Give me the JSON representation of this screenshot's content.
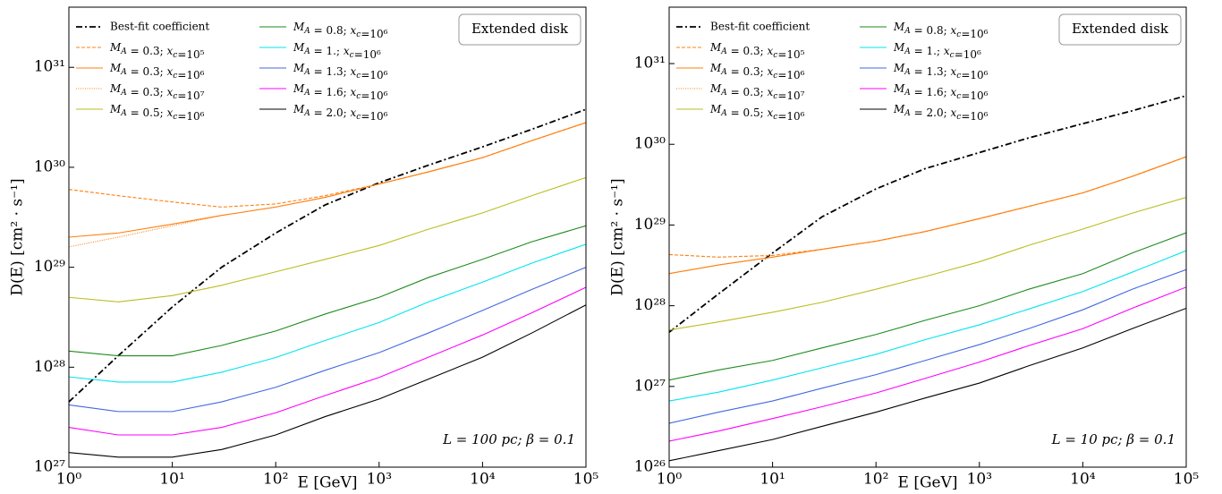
{
  "chart_data": [
    {
      "type": "line",
      "xscale": "log",
      "yscale": "log",
      "xlabel": "E [GeV]",
      "ylabel": "D(E) [cm² · s⁻¹]",
      "box_label": "Extended disk",
      "annotation": "L = 100 pc; β = 0.1",
      "xlim": [
        1,
        100000
      ],
      "ylim": [
        1e+27,
        4e+31
      ],
      "xticks": [
        {
          "value": 1,
          "label": "10⁰"
        },
        {
          "value": 10,
          "label": "10¹"
        },
        {
          "value": 100,
          "label": "10²"
        },
        {
          "value": 1000,
          "label": "10³"
        },
        {
          "value": 10000,
          "label": "10⁴"
        },
        {
          "value": 100000,
          "label": "10⁵"
        }
      ],
      "yticks": [
        {
          "value": 1e+27,
          "label": "10²⁷"
        },
        {
          "value": 1e+28,
          "label": "10²⁸"
        },
        {
          "value": 1e+29,
          "label": "10²⁹"
        },
        {
          "value": 1e+30,
          "label": "10³⁰"
        },
        {
          "value": 1e+31,
          "label": "10³¹"
        }
      ],
      "x": [
        1,
        3,
        10,
        30,
        100,
        300,
        1000,
        3000,
        10000,
        30000,
        100000
      ],
      "series": [
        {
          "name": "Best-fit coefficient",
          "color": "#000000",
          "linestyle": "dashdot",
          "values": [
            4.5e+27,
            1.3e+28,
            4e+28,
            1e+29,
            2.2e+29,
            4.2e+29,
            7e+29,
            1.05e+30,
            1.6e+30,
            2.4e+30,
            3.8e+30
          ]
        },
        {
          "name": "MA = 0.3; xc=10⁵",
          "color": "#ff7f0e",
          "linestyle": "dashed",
          "values": [
            6e+29,
            5.2e+29,
            4.5e+29,
            4e+29,
            4.3e+29,
            5.2e+29,
            6.8e+29,
            9e+29,
            1.25e+30,
            1.85e+30,
            2.8e+30
          ]
        },
        {
          "name": "MA = 0.3; xc=10⁶",
          "color": "#ff7f0e",
          "linestyle": "solid",
          "values": [
            2e+29,
            2.2e+29,
            2.7e+29,
            3.3e+29,
            4e+29,
            5e+29,
            6.8e+29,
            9e+29,
            1.25e+30,
            1.85e+30,
            2.8e+30
          ]
        },
        {
          "name": "MA = 0.3; xc=10⁷",
          "color": "#ff7f0e",
          "linestyle": "dotted",
          "values": [
            1.6e+29,
            2e+29,
            2.6e+29,
            3.3e+29,
            4e+29,
            5e+29,
            6.8e+29,
            9e+29,
            1.25e+30,
            1.85e+30,
            2.8e+30
          ]
        },
        {
          "name": "MA = 0.5; xc=10⁶",
          "color": "#bcbd22",
          "linestyle": "solid",
          "values": [
            5e+28,
            4.5e+28,
            5.2e+28,
            6.6e+28,
            9e+28,
            1.2e+29,
            1.65e+29,
            2.4e+29,
            3.5e+29,
            5.2e+29,
            7.9e+29
          ]
        },
        {
          "name": "MA = 0.8; xc=10⁶",
          "color": "#1e8b1e",
          "linestyle": "solid",
          "values": [
            1.45e+28,
            1.3e+28,
            1.3e+28,
            1.65e+28,
            2.3e+28,
            3.4e+28,
            5e+28,
            7.9e+28,
            1.2e+29,
            1.8e+29,
            2.6e+29
          ]
        },
        {
          "name": "MA = 1.; xc=10⁶",
          "color": "#00e5ee",
          "linestyle": "solid",
          "values": [
            8e+27,
            7.1e+27,
            7.1e+27,
            8.9e+27,
            1.25e+28,
            1.85e+28,
            2.8e+28,
            4.5e+28,
            7.1e+28,
            1.1e+29,
            1.7e+29
          ]
        },
        {
          "name": "MA = 1.3; xc=10⁶",
          "color": "#4169e1",
          "linestyle": "solid",
          "values": [
            4.2e+27,
            3.6e+27,
            3.6e+27,
            4.5e+27,
            6.3e+27,
            9.3e+27,
            1.4e+28,
            2.2e+28,
            3.7e+28,
            6e+28,
            1e+29
          ]
        },
        {
          "name": "MA = 1.6; xc=10⁶",
          "color": "#ff00ff",
          "linestyle": "solid",
          "values": [
            2.5e+27,
            2.1e+27,
            2.1e+27,
            2.5e+27,
            3.5e+27,
            5.2e+27,
            7.9e+27,
            1.26e+28,
            2.1e+28,
            3.5e+28,
            6.3e+28
          ]
        },
        {
          "name": "MA = 2.0; xc=10⁶",
          "color": "#000000",
          "linestyle": "solid",
          "values": [
            1.4e+27,
            1.26e+27,
            1.26e+27,
            1.5e+27,
            2.1e+27,
            3.2e+27,
            4.8e+27,
            7.6e+27,
            1.26e+28,
            2.2e+28,
            4.2e+28
          ]
        }
      ]
    },
    {
      "type": "line",
      "xscale": "log",
      "yscale": "log",
      "xlabel": "E [GeV]",
      "ylabel": "D(E) [cm² · s⁻¹]",
      "box_label": "Extended disk",
      "annotation": "L = 10 pc; β = 0.1",
      "xlim": [
        1,
        100000
      ],
      "ylim": [
        1e+26,
        5e+31
      ],
      "xticks": [
        {
          "value": 1,
          "label": "10⁰"
        },
        {
          "value": 10,
          "label": "10¹"
        },
        {
          "value": 100,
          "label": "10²"
        },
        {
          "value": 1000,
          "label": "10³"
        },
        {
          "value": 10000,
          "label": "10⁴"
        },
        {
          "value": 100000,
          "label": "10⁵"
        }
      ],
      "yticks": [
        {
          "value": 1e+26,
          "label": "10²⁶"
        },
        {
          "value": 1e+27,
          "label": "10²⁷"
        },
        {
          "value": 1e+28,
          "label": "10²⁸"
        },
        {
          "value": 1e+29,
          "label": "10²⁹"
        },
        {
          "value": 1e+30,
          "label": "10³⁰"
        },
        {
          "value": 1e+31,
          "label": "10³¹"
        }
      ],
      "x": [
        1,
        3,
        10,
        30,
        100,
        300,
        1000,
        3000,
        10000,
        30000,
        100000
      ],
      "series": [
        {
          "name": "Best-fit coefficient",
          "color": "#000000",
          "linestyle": "dashdot",
          "values": [
            4.7e+27,
            1.4e+28,
            4.5e+28,
            1.26e+29,
            2.8e+29,
            5e+29,
            7.9e+29,
            1.2e+30,
            1.8e+30,
            2.6e+30,
            4e+30
          ]
        },
        {
          "name": "MA = 0.3; xc=10⁵",
          "color": "#ff7f0e",
          "linestyle": "dashed",
          "values": [
            4.3e+28,
            4e+28,
            4.2e+28,
            5e+28,
            6.3e+28,
            8.3e+28,
            1.2e+29,
            1.7e+29,
            2.5e+29,
            4e+29,
            7e+29
          ]
        },
        {
          "name": "MA = 0.3; xc=10⁶",
          "color": "#ff7f0e",
          "linestyle": "solid",
          "values": [
            2.5e+28,
            3.2e+28,
            4e+28,
            5e+28,
            6.3e+28,
            8.3e+28,
            1.2e+29,
            1.7e+29,
            2.5e+29,
            4e+29,
            7e+29
          ]
        },
        {
          "name": "MA = 0.3; xc=10⁷",
          "color": "#ff7f0e",
          "linestyle": "dotted",
          "values": [
            2.5e+28,
            3.2e+28,
            4e+28,
            5e+28,
            6.3e+28,
            8.3e+28,
            1.2e+29,
            1.7e+29,
            2.5e+29,
            4e+29,
            7e+29
          ]
        },
        {
          "name": "MA = 0.5; xc=10⁶",
          "color": "#bcbd22",
          "linestyle": "solid",
          "values": [
            5e+27,
            6.3e+27,
            8.3e+27,
            1.1e+28,
            1.6e+28,
            2.3e+28,
            3.5e+28,
            5.6e+28,
            8.9e+28,
            1.4e+29,
            2.2e+29
          ]
        },
        {
          "name": "MA = 0.8; xc=10⁶",
          "color": "#1e8b1e",
          "linestyle": "solid",
          "values": [
            1.2e+27,
            1.6e+27,
            2.1e+27,
            3e+27,
            4.4e+27,
            6.6e+27,
            1e+28,
            1.6e+28,
            2.5e+28,
            4.5e+28,
            8e+28
          ]
        },
        {
          "name": "MA = 1.; xc=10⁶",
          "color": "#00e5ee",
          "linestyle": "solid",
          "values": [
            6.6e+26,
            8.5e+26,
            1.2e+27,
            1.7e+27,
            2.5e+27,
            3.8e+27,
            5.8e+27,
            9.1e+27,
            1.5e+28,
            2.6e+28,
            4.8e+28
          ]
        },
        {
          "name": "MA = 1.3; xc=10⁶",
          "color": "#4169e1",
          "linestyle": "solid",
          "values": [
            3.5e+26,
            4.8e+26,
            6.6e+26,
            9.5e+26,
            1.4e+27,
            2.1e+27,
            3.3e+27,
            5.2e+27,
            8.9e+27,
            1.6e+28,
            2.8e+28
          ]
        },
        {
          "name": "MA = 1.6; xc=10⁶",
          "color": "#ff00ff",
          "linestyle": "solid",
          "values": [
            2.1e+26,
            2.8e+26,
            4e+26,
            5.6e+26,
            8.3e+26,
            1.26e+27,
            2e+27,
            3.2e+27,
            5.2e+27,
            9.3e+27,
            1.7e+28
          ]
        },
        {
          "name": "MA = 2.0; xc=10⁶",
          "color": "#000000",
          "linestyle": "solid",
          "values": [
            1.2e+26,
            1.6e+26,
            2.2e+26,
            3.2e+26,
            4.8e+26,
            7.2e+26,
            1.1e+27,
            1.8e+27,
            3e+27,
            5.2e+27,
            9.3e+27
          ]
        }
      ]
    }
  ]
}
